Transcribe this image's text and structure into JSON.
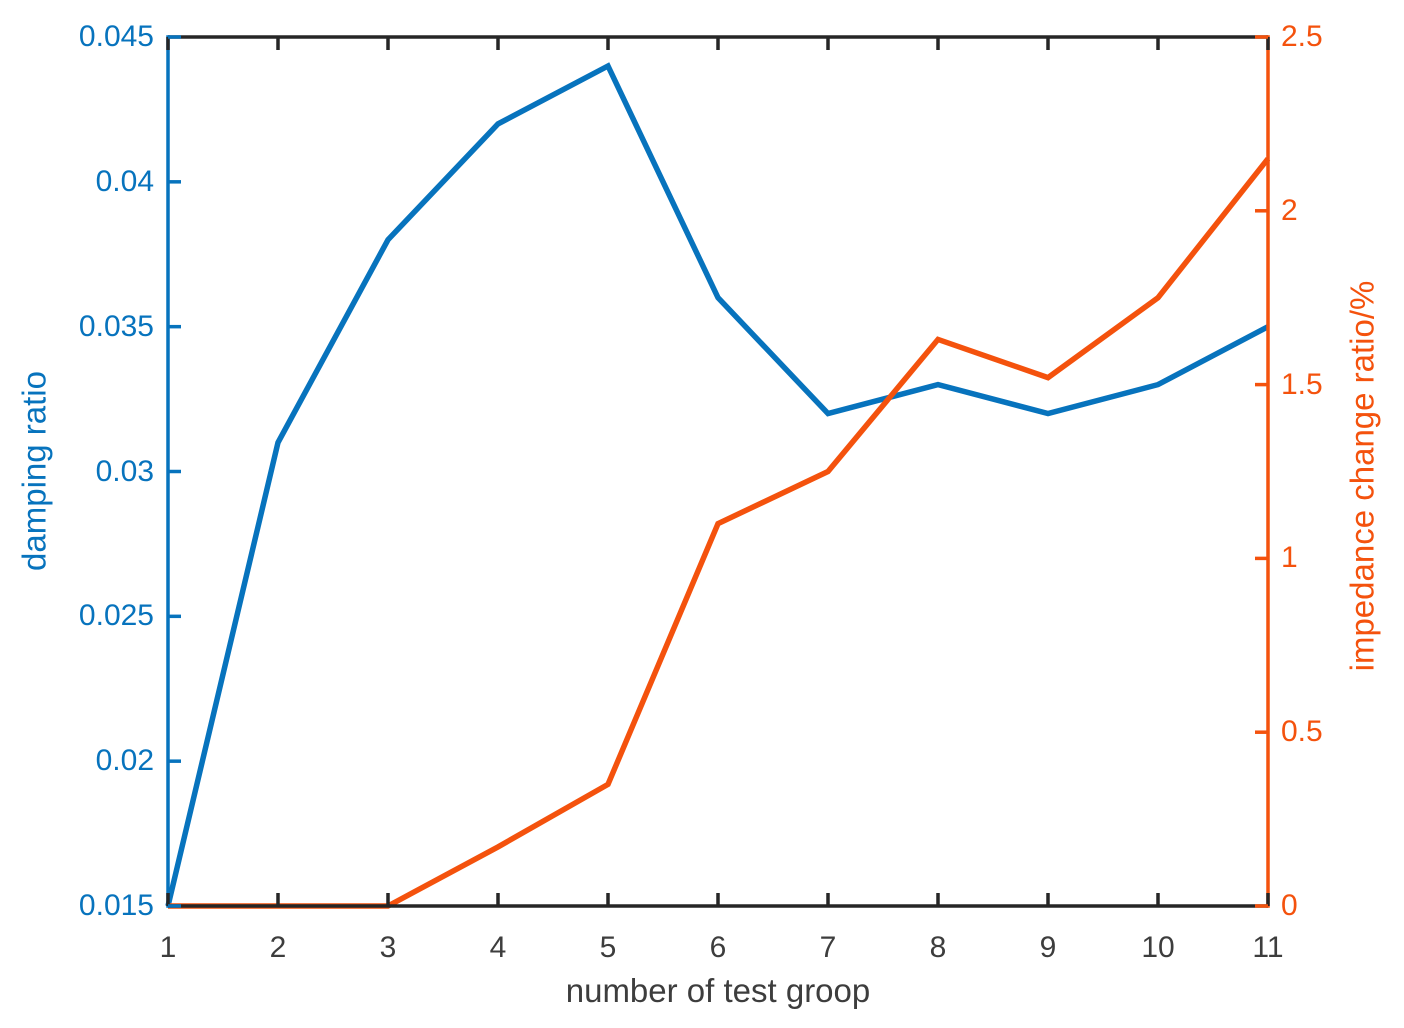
{
  "chart_data": {
    "type": "line",
    "title": "",
    "xlabel": "number of test groop",
    "x": [
      1,
      2,
      3,
      4,
      5,
      6,
      7,
      8,
      9,
      10,
      11
    ],
    "x_axis": {
      "min": 1,
      "max": 11,
      "tick_labels": [
        "1",
        "2",
        "3",
        "4",
        "5",
        "6",
        "7",
        "8",
        "9",
        "10",
        "11"
      ],
      "tick_values": [
        1,
        2,
        3,
        4,
        5,
        6,
        7,
        8,
        9,
        10,
        11
      ],
      "color": "#262626",
      "label_color": "#3d3d3d"
    },
    "left_axis": {
      "label": "damping ratio",
      "min": 0.015,
      "max": 0.045,
      "tick_labels": [
        "0.015",
        "0.02",
        "0.025",
        "0.03",
        "0.035",
        "0.04",
        "0.045"
      ],
      "tick_values": [
        0.015,
        0.02,
        0.025,
        0.03,
        0.035,
        0.04,
        0.045
      ],
      "color": "#0773bd"
    },
    "right_axis": {
      "label": "impedance change ratio/%",
      "min": 0,
      "max": 2.5,
      "tick_labels": [
        "0",
        "0.5",
        "1",
        "1.5",
        "2",
        "2.5"
      ],
      "tick_values": [
        0,
        0.5,
        1,
        1.5,
        2,
        2.5
      ],
      "color": "#f4520d"
    },
    "series": [
      {
        "name": "damping ratio",
        "axis": "left",
        "color": "#0773bd",
        "values": [
          0.015,
          0.031,
          0.038,
          0.042,
          0.044,
          0.036,
          0.032,
          0.033,
          0.032,
          0.033,
          0.035
        ]
      },
      {
        "name": "impedance change ratio/%",
        "axis": "right",
        "color": "#f4520d",
        "values": [
          0,
          0,
          0,
          0.17,
          0.35,
          1.1,
          1.25,
          1.63,
          1.52,
          1.75,
          2.15
        ]
      }
    ],
    "grid": false,
    "legend": false,
    "box": true
  }
}
